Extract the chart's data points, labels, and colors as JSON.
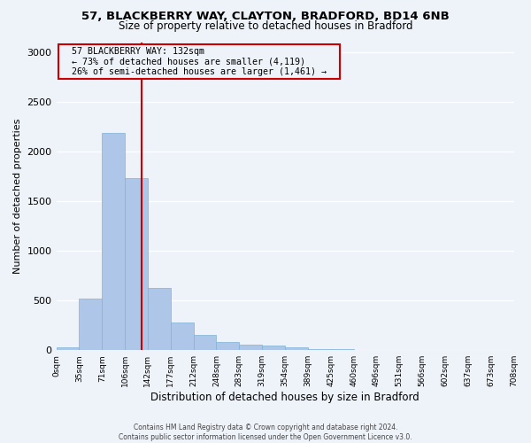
{
  "title1": "57, BLACKBERRY WAY, CLAYTON, BRADFORD, BD14 6NB",
  "title2": "Size of property relative to detached houses in Bradford",
  "xlabel": "Distribution of detached houses by size in Bradford",
  "ylabel": "Number of detached properties",
  "footer1": "Contains HM Land Registry data © Crown copyright and database right 2024.",
  "footer2": "Contains public sector information licensed under the Open Government Licence v3.0.",
  "annotation_line1": "57 BLACKBERRY WAY: 132sqm",
  "annotation_line2": "← 73% of detached houses are smaller (4,119)",
  "annotation_line3": "26% of semi-detached houses are larger (1,461) →",
  "bar_values": [
    30,
    520,
    2190,
    1730,
    630,
    280,
    150,
    80,
    55,
    45,
    25,
    15,
    8,
    5,
    3,
    2,
    2,
    1,
    1,
    1
  ],
  "bin_labels": [
    "0sqm",
    "35sqm",
    "71sqm",
    "106sqm",
    "142sqm",
    "177sqm",
    "212sqm",
    "248sqm",
    "283sqm",
    "319sqm",
    "354sqm",
    "389sqm",
    "425sqm",
    "460sqm",
    "496sqm",
    "531sqm",
    "566sqm",
    "602sqm",
    "637sqm",
    "673sqm",
    "708sqm"
  ],
  "bar_color": "#aec6e8",
  "bar_edge_color": "#7fb3d9",
  "vline_color": "#cc0000",
  "annotation_box_color": "#cc0000",
  "background_color": "#eef2f9",
  "grid_color": "#ffffff",
  "ylim": [
    0,
    3100
  ],
  "yticks": [
    0,
    500,
    1000,
    1500,
    2000,
    2500,
    3000
  ],
  "bin_edges": [
    0,
    35,
    71,
    106,
    142,
    177,
    212,
    248,
    283,
    319,
    354,
    389,
    425,
    460,
    496,
    531,
    566,
    602,
    637,
    673,
    708
  ],
  "property_size": 132
}
